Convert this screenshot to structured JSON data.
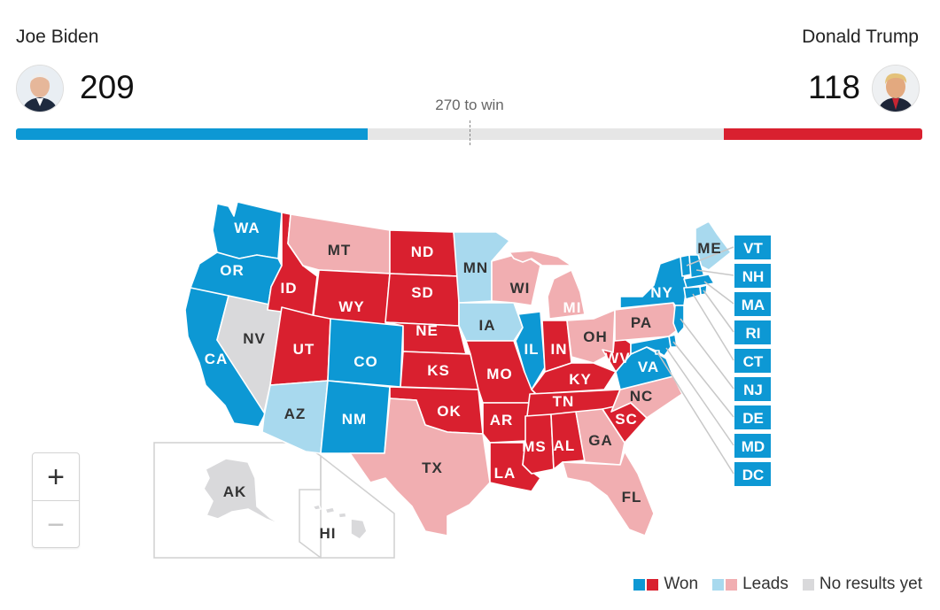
{
  "header": {
    "dem": {
      "name": "Joe Biden",
      "votes": "209",
      "avatar": "biden-portrait"
    },
    "rep": {
      "name": "Donald Trump",
      "votes": "118",
      "avatar": "trump-portrait"
    },
    "to_win_label": "270 to win",
    "progress": {
      "total": 538,
      "dem": 209,
      "rep": 118,
      "threshold": 270
    }
  },
  "colors": {
    "dem_won": "#0d98d4",
    "dem_leads": "#a8d9ee",
    "rep_won": "#d9202f",
    "rep_leads": "#f1aeb1",
    "no_results": "#d9d9db"
  },
  "states": {
    "WA": "dem_won",
    "OR": "dem_won",
    "CA": "dem_won",
    "NV": "no_results",
    "ID": "rep_won",
    "MT": "rep_leads",
    "WY": "rep_won",
    "UT": "rep_won",
    "CO": "dem_won",
    "AZ": "dem_leads",
    "NM": "dem_won",
    "ND": "rep_won",
    "SD": "rep_won",
    "NE": "rep_won",
    "KS": "rep_won",
    "OK": "rep_won",
    "TX": "rep_leads",
    "MN": "dem_leads",
    "IA": "dem_leads",
    "MO": "rep_won",
    "AR": "rep_won",
    "LA": "rep_won",
    "WI": "rep_leads",
    "IL": "dem_won",
    "MI": "rep_leads",
    "IN": "rep_won",
    "OH": "rep_leads",
    "KY": "rep_won",
    "TN": "rep_won",
    "MS": "rep_won",
    "AL": "rep_won",
    "GA": "rep_leads",
    "FL": "rep_leads",
    "SC": "rep_won",
    "NC": "rep_leads",
    "WV": "rep_won",
    "VA": "dem_won",
    "PA": "rep_leads",
    "NY": "dem_won",
    "ME": "dem_leads",
    "AK": "no_results",
    "HI": "no_results",
    "VT": "dem_won",
    "NH": "dem_won",
    "MA": "dem_won",
    "RI": "dem_won",
    "CT": "dem_won",
    "NJ": "dem_won",
    "DE": "dem_won",
    "MD": "dem_won",
    "DC": "dem_won"
  },
  "east_boxes": [
    "VT",
    "NH",
    "MA",
    "RI",
    "CT",
    "NJ",
    "DE",
    "MD",
    "DC"
  ],
  "zoom": {
    "in": "+",
    "out": "−"
  },
  "legend": {
    "won": "Won",
    "leads": "Leads",
    "none": "No results yet"
  }
}
